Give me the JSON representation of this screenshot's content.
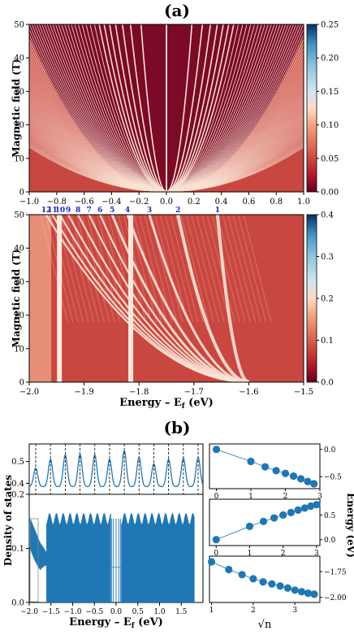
{
  "figure": {
    "label_a": "(a)",
    "label_b": "(b)"
  },
  "chart_data": [
    {
      "id": "a_top",
      "type": "heatmap",
      "title": "",
      "ylabel": "Magnetic field (T)",
      "xlabel": "",
      "xlim": [
        -1.0,
        1.0
      ],
      "ylim": [
        0,
        50
      ],
      "xticks": [
        "-1.0",
        "-0.8",
        "-0.6",
        "-0.4",
        "-0.2",
        "0.0",
        "0.2",
        "0.4",
        "0.6",
        "0.8",
        "1.0"
      ],
      "yticks": [
        "0",
        "10",
        "20",
        "30",
        "40",
        "50"
      ],
      "colorbar": {
        "range": [
          0.0,
          0.25
        ],
        "ticks": [
          "0.00",
          "0.05",
          "0.10",
          "0.15",
          "0.20",
          "0.25"
        ]
      },
      "description_levels": "Landau levels fanning out as sqrt(B) from E=0, symmetric about zero energy"
    },
    {
      "id": "a_bottom",
      "type": "heatmap",
      "ylabel": "Magnetic field (T)",
      "xlabel": "Energy – E",
      "xlabel_sub": "f",
      "xlabel_unit": " (eV)",
      "xlim": [
        -2.0,
        -1.5
      ],
      "ylim": [
        0,
        50
      ],
      "xticks": [
        "-2.0",
        "-1.9",
        "-1.8",
        "-1.7",
        "-1.6",
        "-1.5"
      ],
      "yticks": [
        "0",
        "10",
        "20",
        "30",
        "40",
        "50"
      ],
      "colorbar": {
        "range": [
          0.0,
          0.4
        ],
        "ticks": [
          "0.0",
          "0.1",
          "0.2",
          "0.3",
          "0.4"
        ]
      },
      "level_labels": [
        "12",
        "11",
        "10",
        "9",
        "8",
        "7",
        "6",
        "5",
        "4",
        "3",
        "2",
        "1"
      ],
      "level_label_energies": [
        -1.969,
        -1.958,
        -1.944,
        -1.929,
        -1.911,
        -1.891,
        -1.871,
        -1.849,
        -1.821,
        -1.781,
        -1.729,
        -1.657
      ],
      "level_origin_energy": -1.6,
      "vertical_bright_lines": [
        -1.945,
        -1.815
      ]
    },
    {
      "id": "b_inset",
      "type": "line",
      "xlabel": "",
      "ylabel": "",
      "ylim": [
        0.35,
        0.58
      ],
      "yticks": [
        "0.4",
        "0.5"
      ],
      "level_labels": [
        "12",
        "11",
        "10",
        "9",
        "8",
        "7",
        "6",
        "5",
        "4",
        "3",
        "2",
        "1"
      ],
      "peak_values": [
        0.47,
        0.51,
        0.53,
        0.535,
        0.53,
        0.51,
        0.55,
        0.52,
        0.49,
        0.51,
        0.515,
        0.52
      ]
    },
    {
      "id": "b_main",
      "type": "line",
      "ylabel": "Density of states",
      "xlabel": "Energy – E",
      "xlabel_sub": "f",
      "xlabel_unit": " (eV)",
      "xlim": [
        -2.0,
        2.0
      ],
      "ylim": [
        0.0,
        0.2
      ],
      "xticks": [
        "-2.0",
        "-1.5",
        "-1.0",
        "-0.5",
        "0.0",
        "0.5",
        "1.0",
        "1.5"
      ],
      "yticks": [
        "0.0",
        "0.1",
        "0.2"
      ],
      "band_top_value": 0.155,
      "band_edge_energy": -1.6
    },
    {
      "id": "b_right_top",
      "type": "scatter",
      "x": [
        0,
        1,
        1.414,
        1.732,
        2.0,
        2.236,
        2.449,
        2.646,
        2.828
      ],
      "y": [
        0.0,
        -0.22,
        -0.32,
        -0.39,
        -0.44,
        -0.49,
        -0.54,
        -0.59,
        -0.63
      ],
      "xlim": [
        -0.2,
        3.0
      ],
      "ylim": [
        -0.72,
        0.1
      ],
      "xticks": [
        "0",
        "1",
        "2",
        "3"
      ],
      "yticks": [
        "0.0",
        "-0.5"
      ]
    },
    {
      "id": "b_right_mid",
      "type": "scatter",
      "x": [
        0,
        1,
        1.414,
        1.732,
        2.0,
        2.236,
        2.449,
        2.646,
        2.828,
        3.0
      ],
      "y": [
        0.0,
        0.27,
        0.37,
        0.44,
        0.5,
        0.55,
        0.6,
        0.64,
        0.68,
        0.71
      ],
      "xlim": [
        -0.2,
        3.1
      ],
      "ylim": [
        -0.12,
        0.82
      ],
      "xticks": [
        "0",
        "1",
        "2",
        "3"
      ],
      "yticks": [
        "0.5",
        "0.0"
      ]
    },
    {
      "id": "b_right_bottom",
      "type": "scatter",
      "x": [
        1,
        1.414,
        1.732,
        2.0,
        2.236,
        2.449,
        2.646,
        2.828,
        3.0,
        3.162,
        3.317,
        3.464
      ],
      "y": [
        -1.655,
        -1.73,
        -1.78,
        -1.82,
        -1.85,
        -1.87,
        -1.89,
        -1.91,
        -1.93,
        -1.945,
        -1.96,
        -1.97
      ],
      "xlim": [
        0.95,
        3.6
      ],
      "ylim": [
        -2.05,
        -1.6
      ],
      "xticks": [
        "1",
        "2",
        "3"
      ],
      "yticks": [
        "-1.75",
        "-2.00"
      ],
      "xlabel": "√n",
      "ylabel": "Energy (eV)"
    }
  ]
}
